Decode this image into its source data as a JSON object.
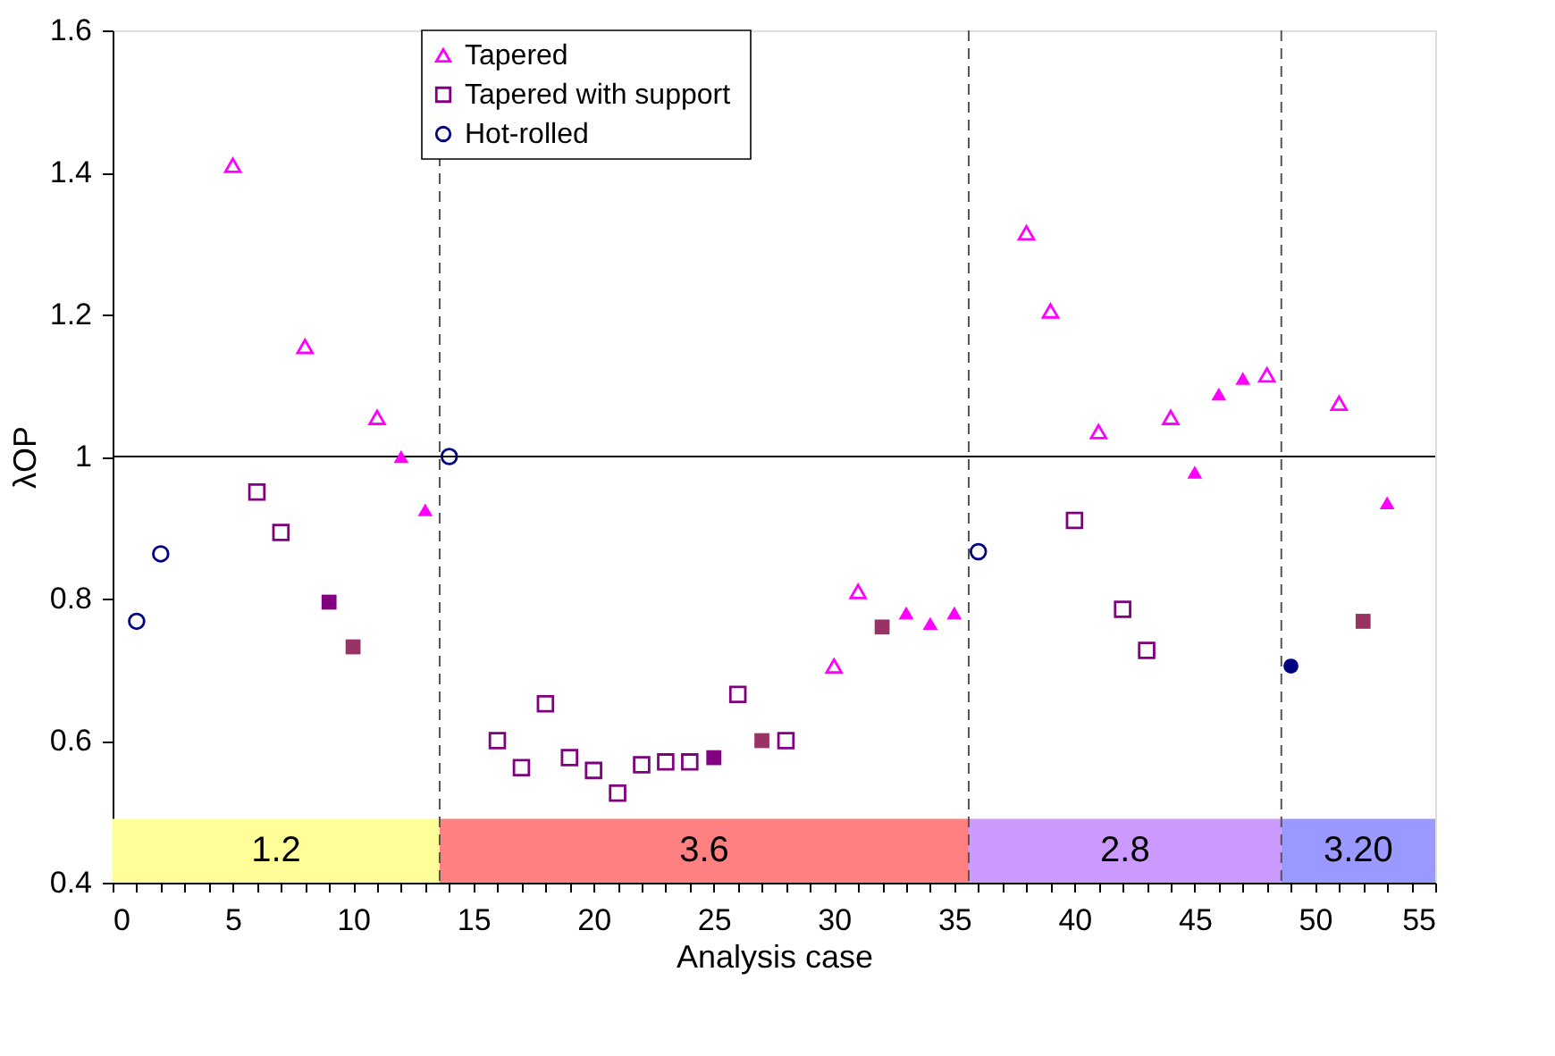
{
  "chart_data": {
    "type": "scatter",
    "xlabel": "Analysis case",
    "ylabel": "λOP",
    "xlim": [
      0,
      55
    ],
    "ylim": [
      0.4,
      1.6
    ],
    "xticks": [
      0,
      {
        "value": 1,
        "label": null
      },
      {
        "value": 2,
        "label": null
      },
      {
        "value": 3,
        "label": null
      },
      {
        "value": 4,
        "label": null
      },
      5,
      {
        "value": 6,
        "label": null
      },
      {
        "value": 7,
        "label": null
      },
      {
        "value": 8,
        "label": null
      },
      {
        "value": 9,
        "label": null
      },
      10,
      {
        "value": 11,
        "label": null
      },
      {
        "value": 12,
        "label": null
      },
      {
        "value": 13,
        "label": null
      },
      {
        "value": 14,
        "label": null
      },
      15,
      {
        "value": 16,
        "label": null
      },
      {
        "value": 17,
        "label": null
      },
      {
        "value": 18,
        "label": null
      },
      {
        "value": 19,
        "label": null
      },
      20,
      {
        "value": 21,
        "label": null
      },
      {
        "value": 22,
        "label": null
      },
      {
        "value": 23,
        "label": null
      },
      {
        "value": 24,
        "label": null
      },
      25,
      {
        "value": 26,
        "label": null
      },
      {
        "value": 27,
        "label": null
      },
      {
        "value": 28,
        "label": null
      },
      {
        "value": 29,
        "label": null
      },
      30,
      {
        "value": 31,
        "label": null
      },
      {
        "value": 32,
        "label": null
      },
      {
        "value": 33,
        "label": null
      },
      {
        "value": 34,
        "label": null
      },
      35,
      {
        "value": 36,
        "label": null
      },
      {
        "value": 37,
        "label": null
      },
      {
        "value": 38,
        "label": null
      },
      {
        "value": 39,
        "label": null
      },
      40,
      {
        "value": 41,
        "label": null
      },
      {
        "value": 42,
        "label": null
      },
      {
        "value": 43,
        "label": null
      },
      {
        "value": 44,
        "label": null
      },
      45,
      {
        "value": 46,
        "label": null
      },
      {
        "value": 47,
        "label": null
      },
      {
        "value": 48,
        "label": null
      },
      {
        "value": 49,
        "label": null
      },
      50,
      {
        "value": 51,
        "label": null
      },
      {
        "value": 52,
        "label": null
      },
      {
        "value": 53,
        "label": null
      },
      {
        "value": 54,
        "label": null
      },
      55
    ],
    "yticks": [
      0.4,
      0.6,
      0.8,
      1,
      1.2,
      1.4,
      1.6
    ],
    "grid": false,
    "legend": "top",
    "series": [
      {
        "name": "Tapered",
        "marker": "triangle",
        "color": "#ff00ff",
        "x": [
          5,
          8,
          11,
          30,
          31,
          38,
          39,
          41,
          44,
          48,
          51
        ],
        "values": [
          1.41,
          1.155,
          1.055,
          0.705,
          0.81,
          1.315,
          1.205,
          1.035,
          1.055,
          1.115,
          1.075
        ]
      },
      {
        "name": "Tapered with support",
        "marker": "square",
        "color": "#800080",
        "x": [
          6,
          7,
          16,
          17,
          18,
          19,
          20,
          21,
          22,
          23,
          24,
          26,
          28,
          40,
          42,
          43
        ],
        "values": [
          0.95,
          0.893,
          0.6,
          0.562,
          0.652,
          0.576,
          0.558,
          0.526,
          0.566,
          0.57,
          0.57,
          0.665,
          0.6,
          0.91,
          0.785,
          0.727
        ]
      },
      {
        "name": "Hot-rolled",
        "marker": "circle",
        "color": "#000080",
        "x": [
          1,
          2,
          14,
          36
        ],
        "values": [
          0.768,
          0.863,
          1.0,
          0.866
        ]
      },
      {
        "marker": "triangle",
        "color": "#ff00ff",
        "x": [
          12,
          13,
          33,
          34,
          35,
          45,
          46,
          47,
          53
        ],
        "values": [
          1.0,
          0.925,
          0.78,
          0.765,
          0.78,
          0.978,
          1.088,
          1.11,
          0.935
        ]
      },
      {
        "marker": "square",
        "color": "#800080",
        "x": [
          9,
          25
        ],
        "values": [
          0.795,
          0.576
        ]
      },
      {
        "marker": "square",
        "color": "#993366",
        "x": [
          10,
          27,
          32,
          52
        ],
        "values": [
          0.732,
          0.6,
          0.76,
          0.768
        ]
      },
      {
        "marker": "circle",
        "color": "#000080",
        "x": [
          49
        ],
        "values": [
          0.705
        ]
      }
    ],
    "ref_lines": [
      {
        "axis": "y",
        "value": 1,
        "line_style": "solid",
        "color": "#000000"
      },
      {
        "axis": "x",
        "value": 13.6,
        "line_style": "dashed",
        "color": "#555555"
      },
      {
        "axis": "x",
        "value": 35.6,
        "line_style": "dashed",
        "color": "#555555"
      },
      {
        "axis": "x",
        "value": 48.6,
        "line_style": "dashed",
        "color": "#555555"
      }
    ],
    "bands": [
      {
        "axis": "x",
        "from": 0,
        "to": 13.6,
        "label": "1.2",
        "color": "#ffff99"
      },
      {
        "axis": "x",
        "from": 13.6,
        "to": 35.6,
        "label": "3.6",
        "color": "#ff8080"
      },
      {
        "axis": "x",
        "from": 35.6,
        "to": 48.6,
        "label": "2.8",
        "color": "#cc99ff"
      },
      {
        "axis": "x",
        "from": 48.6,
        "to": 55,
        "label": "3.20",
        "color": "#9999ff"
      }
    ]
  }
}
